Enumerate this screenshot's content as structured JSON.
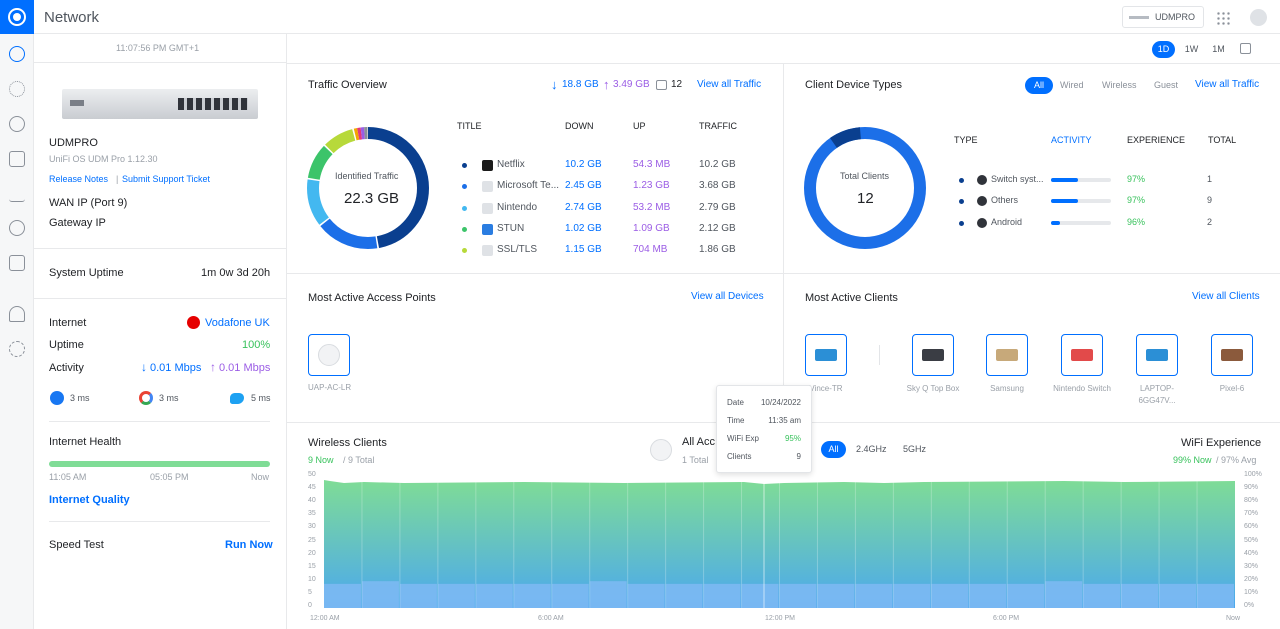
{
  "app": {
    "title": "Network",
    "device_badge": "UDMPRO"
  },
  "rail_icons": [
    "dashboard-icon",
    "topology-icon",
    "devices-icon",
    "clients-icon",
    "statistics-icon",
    "insights-icon",
    "logs-icon",
    "notifications-icon",
    "settings-icon"
  ],
  "side": {
    "time": "11:07:56 PM GMT+1",
    "device_name": "UDMPRO",
    "device_sub": "UniFi OS UDM Pro 1.12.30",
    "release_notes": "Release Notes",
    "submit_ticket": "Submit Support Ticket",
    "wan_ip": "WAN IP (Port 9)",
    "gateway_ip": "Gateway IP",
    "uptime_label": "System Uptime",
    "uptime_value": "1m 0w 3d 20h",
    "internet_label": "Internet",
    "isp": "Vodafone UK",
    "uptime2_label": "Uptime",
    "uptime2_value": "100%",
    "activity_label": "Activity",
    "down": "0.01 Mbps",
    "up": "0.01 Mbps",
    "latency": [
      {
        "icon": "facebook-icon",
        "value": "3 ms"
      },
      {
        "icon": "google-icon",
        "value": "3 ms"
      },
      {
        "icon": "twitter-icon",
        "value": "5 ms"
      }
    ],
    "health_label": "Internet Health",
    "health_ticks": [
      "11:05 AM",
      "05:05 PM",
      "Now"
    ],
    "quality_link": "Internet Quality",
    "speed_label": "Speed Test",
    "run_now": "Run Now"
  },
  "range_tabs": [
    "1D",
    "1W",
    "1M"
  ],
  "traffic": {
    "title": "Traffic Overview",
    "down": "18.8 GB",
    "up": "3.49 GB",
    "apps": "12",
    "view_all": "View all Traffic",
    "donut_label": "Identified Traffic",
    "donut_value": "22.3 GB",
    "headers": [
      "TITLE",
      "DOWN",
      "UP",
      "TRAFFIC"
    ],
    "rows": [
      {
        "title": "Netflix",
        "down": "10.2 GB",
        "up": "54.3 MB",
        "traffic": "10.2 GB",
        "color": "#0a3f8f"
      },
      {
        "title": "Microsoft Te...",
        "down": "2.45 GB",
        "up": "1.23 GB",
        "traffic": "3.68 GB",
        "color": "#1c6fe8"
      },
      {
        "title": "Nintendo",
        "down": "2.74 GB",
        "up": "53.2 MB",
        "traffic": "2.79 GB",
        "color": "#43b8f0"
      },
      {
        "title": "STUN",
        "down": "1.02 GB",
        "up": "1.09 GB",
        "traffic": "2.12 GB",
        "color": "#3cc46a"
      },
      {
        "title": "SSL/TLS",
        "down": "1.15 GB",
        "up": "704 MB",
        "traffic": "1.86 GB",
        "color": "#b7d93a"
      }
    ]
  },
  "clients_types": {
    "title": "Client Device Types",
    "filters": [
      "All",
      "Wired",
      "Wireless",
      "Guest"
    ],
    "view_all": "View all Traffic",
    "donut_label": "Total Clients",
    "donut_value": "12",
    "headers": [
      "TYPE",
      "ACTIVITY",
      "EXPERIENCE",
      "TOTAL"
    ],
    "rows": [
      {
        "type": "Switch syst...",
        "activity": 0.45,
        "experience": "97%",
        "total": "1"
      },
      {
        "type": "Others",
        "activity": 0.45,
        "experience": "97%",
        "total": "9"
      },
      {
        "type": "Android",
        "activity": 0.15,
        "experience": "96%",
        "total": "2"
      }
    ]
  },
  "aps": {
    "title": "Most Active Access Points",
    "view_all": "View all Devices",
    "items": [
      "UAP-AC-LR"
    ]
  },
  "active_clients": {
    "title": "Most Active Clients",
    "view_all": "View all Clients",
    "items": [
      {
        "name": "Vince-TR"
      },
      {
        "name": "Sky Q Top Box"
      },
      {
        "name": "Samsung"
      },
      {
        "name": "Nintendo Switch"
      },
      {
        "name": "LAPTOP-6GG47V..."
      },
      {
        "name": "Pixel-6"
      }
    ]
  },
  "wireless": {
    "title": "Wireless Clients",
    "now": "9 Now",
    "total": "/ 9 Total",
    "ap_label": "All Acc",
    "ap_total": "1 Total",
    "bands": [
      "All",
      "2.4GHz",
      "5GHz"
    ],
    "wifi_title": "WiFi Experience",
    "wifi_now": "99% Now",
    "wifi_avg": "/ 97% Avg",
    "yleft": [
      "50",
      "45",
      "40",
      "35",
      "30",
      "25",
      "20",
      "15",
      "10",
      "5",
      "0"
    ],
    "yright": [
      "100%",
      "90%",
      "80%",
      "70%",
      "60%",
      "50%",
      "40%",
      "30%",
      "20%",
      "10%",
      "0%"
    ],
    "xticks": [
      "12:00 AM",
      "6:00 AM",
      "12:00 PM",
      "6:00 PM",
      "Now"
    ]
  },
  "tooltip": {
    "date_k": "Date",
    "date_v": "10/24/2022",
    "time_k": "Time",
    "time_v": "11:35 am",
    "exp_k": "WiFi Exp",
    "exp_v": "95%",
    "cli_k": "Clients",
    "cli_v": "9"
  }
}
